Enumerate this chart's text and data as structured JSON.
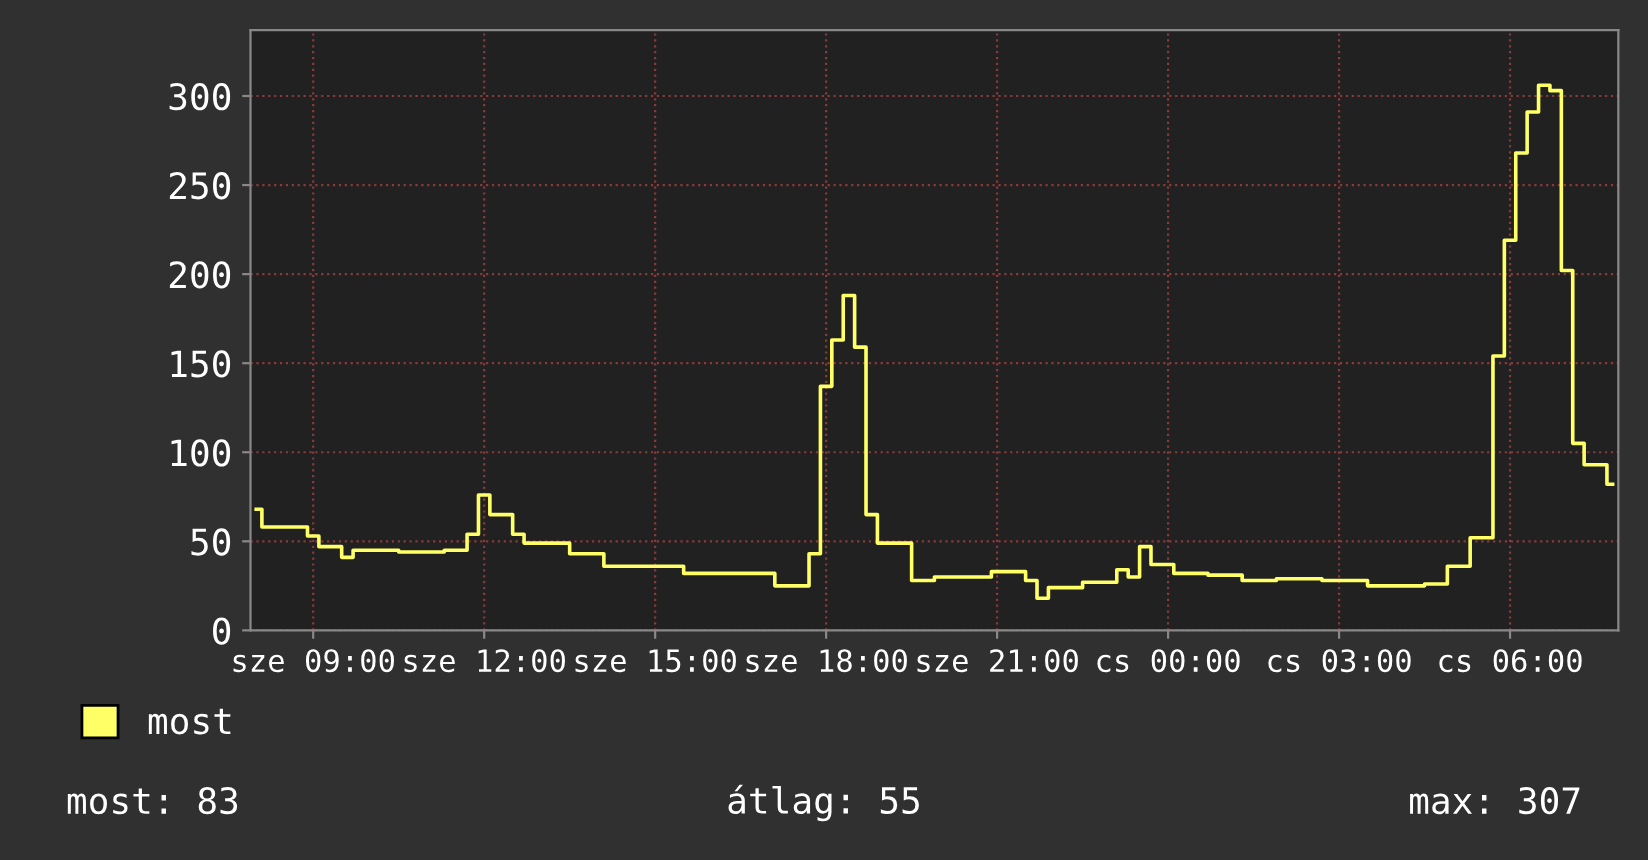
{
  "chart_data": {
    "type": "step",
    "ylim": [
      0,
      337
    ],
    "yticks": [
      0,
      50,
      100,
      150,
      200,
      250,
      300
    ],
    "grid": true,
    "legend": "bottom left",
    "categories": [
      null,
      null,
      null,
      null,
      null,
      "sze 09:00",
      null,
      null,
      null,
      null,
      null,
      null,
      null,
      null,
      null,
      null,
      null,
      null,
      null,
      null,
      "sze 12:00",
      null,
      null,
      null,
      null,
      null,
      null,
      null,
      null,
      null,
      null,
      null,
      null,
      null,
      null,
      "sze 15:00",
      null,
      null,
      null,
      null,
      null,
      null,
      null,
      null,
      null,
      null,
      null,
      null,
      null,
      null,
      "sze 18:00",
      null,
      null,
      null,
      null,
      null,
      null,
      null,
      null,
      null,
      null,
      null,
      null,
      null,
      null,
      "sze 21:00",
      null,
      null,
      null,
      null,
      null,
      null,
      null,
      null,
      null,
      null,
      null,
      null,
      null,
      null,
      "cs 00:00",
      null,
      null,
      null,
      null,
      null,
      null,
      null,
      null,
      null,
      null,
      null,
      null,
      null,
      null,
      "cs 03:00",
      null,
      null,
      null,
      null,
      null,
      null,
      null,
      null,
      null,
      null,
      null,
      null,
      null,
      null,
      "cs 06:00",
      null,
      null,
      null,
      null,
      null,
      null,
      null,
      null,
      null
    ],
    "series": [
      {
        "name": "most",
        "color": "#ffff66",
        "values": [
          68,
          58,
          58,
          58,
          58,
          53,
          47,
          47,
          41,
          45,
          45,
          45,
          45,
          44,
          44,
          44,
          44,
          45,
          45,
          54,
          76,
          65,
          65,
          54,
          49,
          49,
          49,
          49,
          43,
          43,
          43,
          36,
          36,
          36,
          36,
          36,
          36,
          36,
          32,
          32,
          32,
          32,
          32,
          32,
          32,
          32,
          25,
          25,
          25,
          43,
          137,
          163,
          188,
          159,
          65,
          49,
          49,
          49,
          28,
          28,
          30,
          30,
          30,
          30,
          30,
          33,
          33,
          33,
          28,
          18,
          24,
          24,
          24,
          27,
          27,
          27,
          34,
          30,
          47,
          37,
          37,
          32,
          32,
          32,
          31,
          31,
          31,
          28,
          28,
          28,
          29,
          29,
          29,
          29,
          28,
          28,
          28,
          28,
          25,
          25,
          25,
          25,
          25,
          26,
          26,
          36,
          36,
          52,
          52,
          154,
          219,
          268,
          291,
          306,
          303,
          202,
          105,
          93,
          93,
          82
        ]
      }
    ],
    "annotations": [
      "most: 83",
      "átlag: 55",
      "max: 307"
    ]
  }
}
